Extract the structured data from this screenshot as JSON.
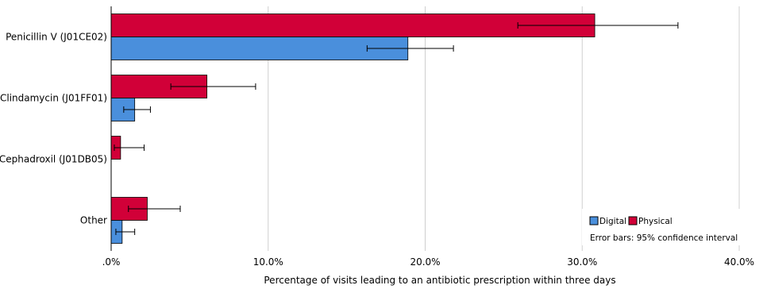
{
  "chart_data": {
    "type": "bar",
    "orientation": "horizontal",
    "categories": [
      "Penicillin V (J01CE02)",
      "Clindamycin (J01FF01)",
      "Cephadroxil (J01DB05)",
      "Other"
    ],
    "series": [
      {
        "name": "Physical",
        "color": "#d10038",
        "values": [
          30.8,
          6.1,
          0.6,
          2.3
        ],
        "error_low": [
          25.9,
          3.8,
          0.2,
          1.1
        ],
        "error_high": [
          36.1,
          9.2,
          2.1,
          4.4
        ]
      },
      {
        "name": "Digital",
        "color": "#4a8fdc",
        "values": [
          18.9,
          1.5,
          0.0,
          0.7
        ],
        "error_low": [
          16.3,
          0.8,
          0.0,
          0.3
        ],
        "error_high": [
          21.8,
          2.5,
          0.0,
          1.5
        ]
      }
    ],
    "xlabel": "Percentage of visits leading to an antibiotic prescription within three days",
    "ylabel": "",
    "xlim": [
      0,
      40
    ],
    "xticks": [
      0,
      10,
      20,
      30,
      40
    ],
    "xtick_labels": [
      ".0%",
      "10.0%",
      "20.0%",
      "30.0%",
      "40.0%"
    ],
    "grid": "vertical",
    "legend_position": "bottom-right",
    "legend_order": [
      "Digital",
      "Physical"
    ],
    "note": "Error bars: 95% confidence interval"
  }
}
